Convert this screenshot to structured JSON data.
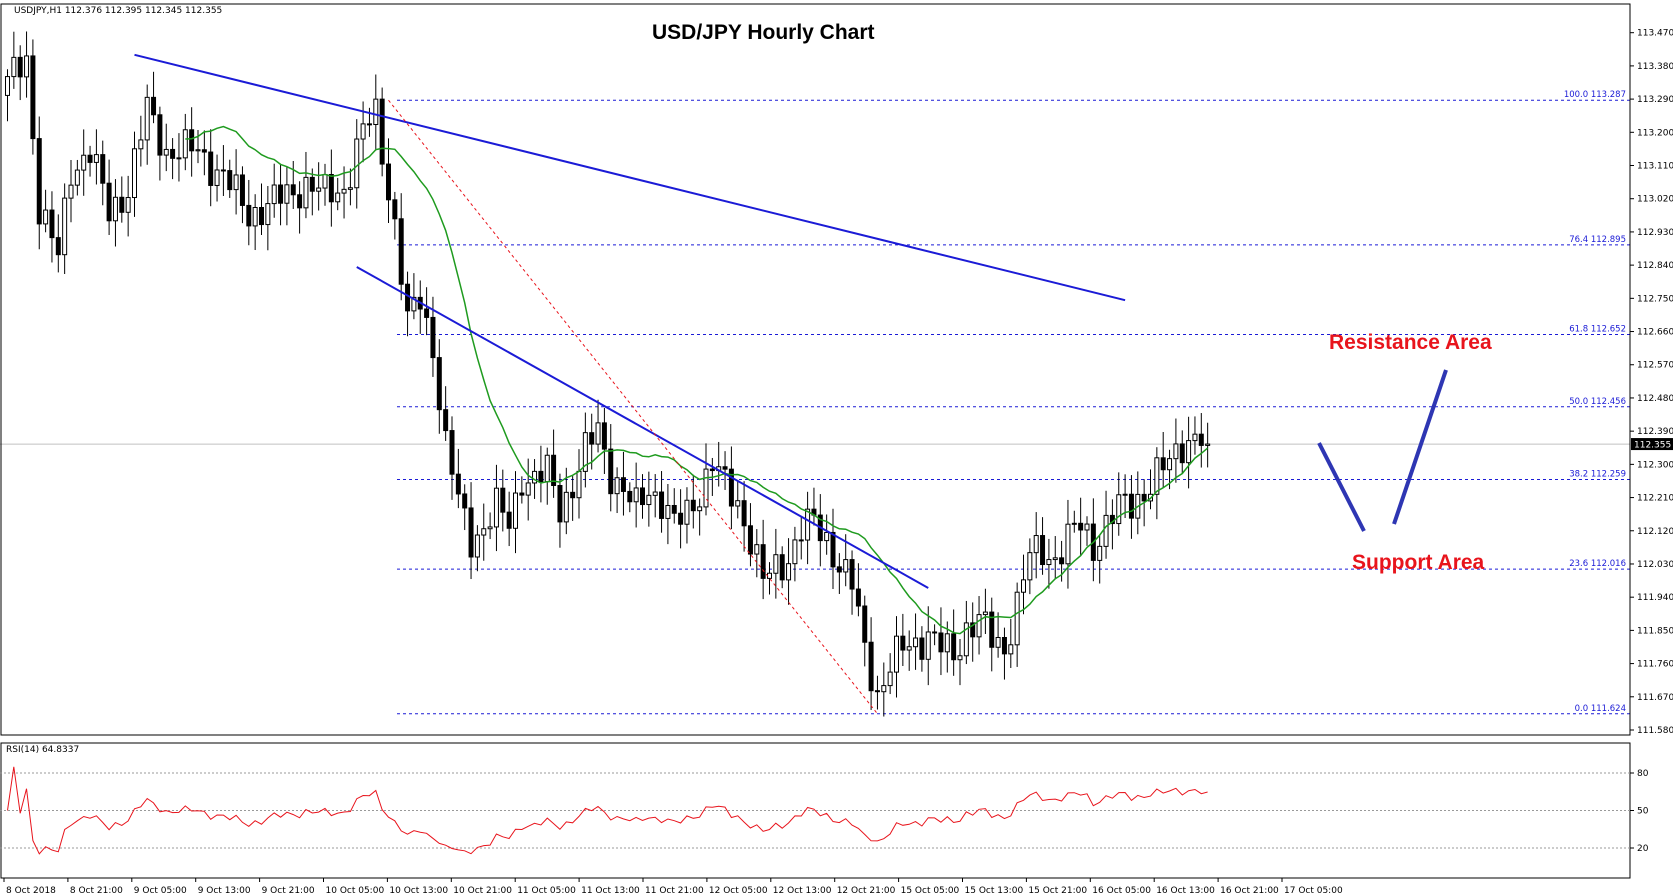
{
  "chart_data": {
    "type": "candlestick",
    "title": "USD/JPY Hourly Chart",
    "header": "USDJPY,H1  112.376 112.395 112.345 112.355",
    "instrument": "USDJPY",
    "timeframe": "H1",
    "ylim": [
      111.58,
      113.48
    ],
    "y_ticks": [
      "113.470",
      "113.380",
      "113.290",
      "113.200",
      "113.110",
      "113.020",
      "112.930",
      "112.840",
      "112.750",
      "112.660",
      "112.570",
      "112.480",
      "112.390",
      "112.300",
      "112.210",
      "112.120",
      "112.030",
      "111.940",
      "111.850",
      "111.760",
      "111.670",
      "111.580"
    ],
    "x_ticks": [
      "8 Oct 2018",
      "8 Oct 21:00",
      "9 Oct 05:00",
      "9 Oct 13:00",
      "9 Oct 21:00",
      "10 Oct 05:00",
      "10 Oct 13:00",
      "10 Oct 21:00",
      "11 Oct 05:00",
      "11 Oct 13:00",
      "11 Oct 21:00",
      "12 Oct 05:00",
      "12 Oct 13:00",
      "12 Oct 21:00",
      "15 Oct 05:00",
      "15 Oct 13:00",
      "15 Oct 21:00",
      "16 Oct 05:00",
      "16 Oct 13:00",
      "16 Oct 21:00",
      "17 Oct 05:00"
    ],
    "last_price": "112.355",
    "last_value": 112.355,
    "fibonacci": [
      {
        "level": 0.0,
        "price": 111.624,
        "label": "0.0 111.624"
      },
      {
        "level": 23.6,
        "price": 112.016,
        "label": "23.6 112.016"
      },
      {
        "level": 38.2,
        "price": 112.259,
        "label": "38.2 112.259"
      },
      {
        "level": 50.0,
        "price": 112.456,
        "label": "50.0 112.456"
      },
      {
        "level": 61.8,
        "price": 112.652,
        "label": "61.8 112.652"
      },
      {
        "level": 76.4,
        "price": 112.895,
        "label": "76.4 112.895"
      },
      {
        "level": 100.0,
        "price": 113.287,
        "label": "100.0 113.287"
      }
    ],
    "annotations": {
      "resistance": "Resistance Area",
      "support": "Support Area"
    },
    "trendlines": [
      {
        "from_bar": 20,
        "from_price": 113.41,
        "to_bar": 176,
        "to_price": 112.745
      },
      {
        "from_bar": 55,
        "from_price": 112.835,
        "to_bar": 145,
        "to_price": 111.965
      }
    ],
    "rsi": {
      "label": "RSI(14) 64.8337",
      "period": 14,
      "value": 64.8337,
      "levels": [
        20,
        50,
        80
      ],
      "ylim": [
        0,
        100
      ]
    },
    "colors": {
      "bull_body": "#ffffff",
      "bear_body": "#000000",
      "ma": "#1f9b1f",
      "trendline": "#1b1bd6",
      "fib": "#1b1bd6",
      "retrace": "#e8141c",
      "rsi": "#e8141c",
      "annotation": "#e8141c",
      "arrow": "#2e36b3"
    }
  }
}
